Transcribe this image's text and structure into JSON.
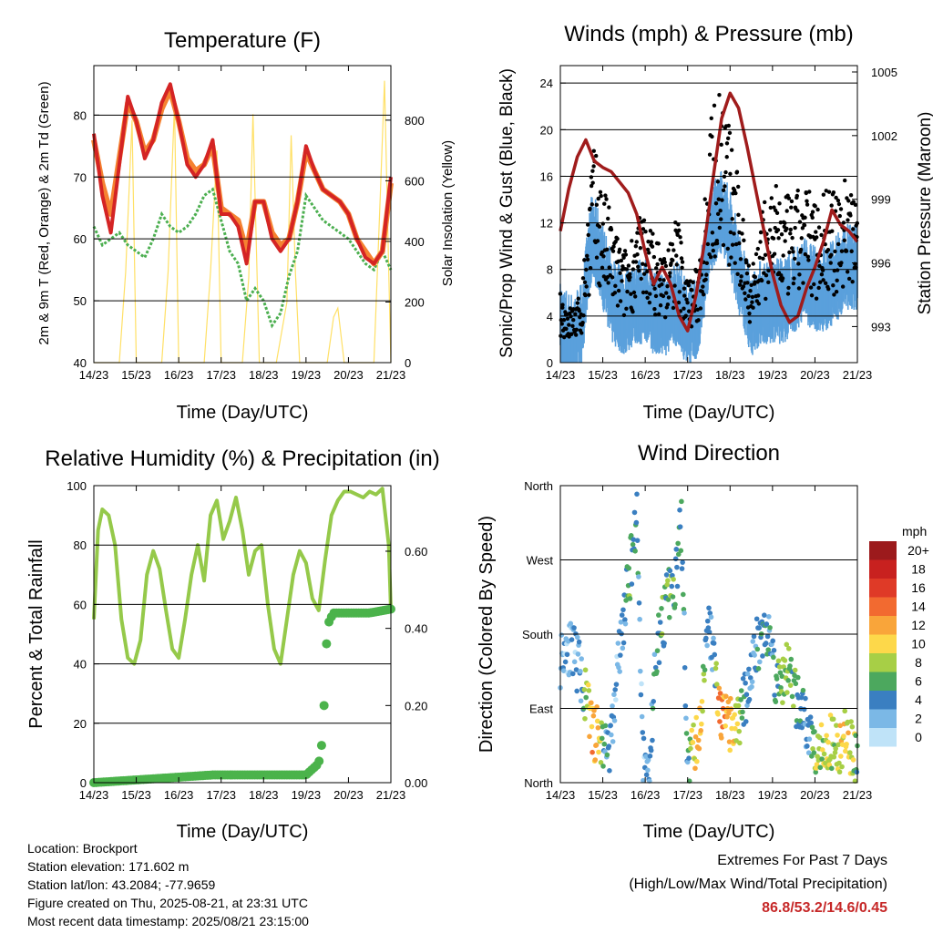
{
  "panels": {
    "temperature": {
      "title": "Temperature (F)",
      "ylabel_left": "2m & 9m T (Red, Orange) & 2m Td (Green)",
      "ylabel_right": "Solar Insolation (Yellow)",
      "xlabel": "Time (Day/UTC)",
      "yticks_left": [
        "40",
        "50",
        "60",
        "70",
        "80"
      ],
      "yticks_right": [
        "0",
        "200",
        "400",
        "600",
        "800"
      ]
    },
    "winds": {
      "title": "Winds (mph) & Pressure (mb)",
      "ylabel_left": "Sonic/Prop Wind & Gust (Blue, Black)",
      "ylabel_right": "Station Pressure (Maroon)",
      "xlabel": "Time (Day/UTC)",
      "yticks_left": [
        "0",
        "4",
        "8",
        "12",
        "16",
        "20",
        "24"
      ],
      "yticks_right": [
        "993",
        "996",
        "999",
        "1002",
        "1005"
      ]
    },
    "humidity": {
      "title": "Relative Humidity (%) & Precipitation (in)",
      "ylabel_left": "Percent & Total Rainfall",
      "xlabel": "Time (Day/UTC)",
      "yticks_left": [
        "0",
        "20",
        "40",
        "60",
        "80",
        "100"
      ],
      "yticks_right": [
        "0.00",
        "0.20",
        "0.40",
        "0.60"
      ]
    },
    "direction": {
      "title": "Wind Direction",
      "ylabel_left": "Direction (Colored By Speed)",
      "xlabel": "Time (Day/UTC)",
      "yticks_left": [
        "North",
        "East",
        "South",
        "West",
        "North"
      ]
    }
  },
  "xticks": [
    "14/23",
    "15/23",
    "16/23",
    "17/23",
    "18/23",
    "19/23",
    "20/23",
    "21/23"
  ],
  "legend": {
    "title": "mph",
    "labels": [
      "20+",
      "18",
      "16",
      "14",
      "12",
      "10",
      "8",
      "6",
      "4",
      "2",
      "0"
    ],
    "colors": [
      "#9c1a1c",
      "#c8211f",
      "#df3a27",
      "#f26a30",
      "#f9a53a",
      "#fdd84a",
      "#a7cf46",
      "#4ca85e",
      "#3a7fc1",
      "#7bb8e6",
      "#bfe3f8"
    ]
  },
  "info": {
    "location": "Location: Brockport",
    "elevation": "Station elevation: 171.602 m",
    "latlon": "Station lat/lon: 43.2084; -77.9659",
    "created": "Figure created on Thu, 2025-08-21, at 23:31 UTC",
    "recent": "Most recent data timestamp: 2025/08/21 23:15:00"
  },
  "extremes": {
    "line1": "Extremes For Past 7 Days",
    "line2": "(High/Low/Max Wind/Total Precipitation)",
    "values": "86.8/53.2/14.6/0.45"
  },
  "colors": {
    "temp2m": "#d42424",
    "temp9m": "#f58231",
    "dewpoint": "#4caf50",
    "solar": "#ffe066",
    "wind": "#5aa0dc",
    "gust": "#000000",
    "pressure": "#a01c1c",
    "rh": "#95c94a",
    "precip": "#4bb34b"
  },
  "chart_data": [
    {
      "type": "line",
      "title": "Temperature (F)",
      "xlabel": "Time (Day/UTC)",
      "x_days": [
        14,
        14.5,
        15,
        15.5,
        16,
        16.5,
        17,
        17.5,
        18,
        18.5,
        19,
        19.5,
        20,
        20.5,
        21
      ],
      "ylim": [
        40,
        88
      ],
      "y2lim": [
        0,
        980
      ],
      "series": [
        {
          "name": "2m T",
          "x": [
            14.0,
            14.2,
            14.4,
            14.6,
            14.8,
            15.0,
            15.2,
            15.4,
            15.6,
            15.8,
            16.0,
            16.2,
            16.4,
            16.6,
            16.8,
            17.0,
            17.2,
            17.4,
            17.6,
            17.8,
            18.0,
            18.2,
            18.4,
            18.6,
            18.8,
            19.0,
            19.2,
            19.4,
            19.6,
            19.8,
            20.0,
            20.2,
            20.4,
            20.6,
            20.8,
            21.0
          ],
          "y": [
            77,
            67,
            61,
            72,
            83,
            79,
            73,
            76,
            82,
            85,
            79,
            72,
            70,
            72,
            76,
            64,
            64,
            62,
            56,
            66,
            66,
            60,
            58,
            60,
            66,
            75,
            71,
            68,
            67,
            66,
            64,
            60,
            57,
            56,
            58,
            70
          ]
        },
        {
          "name": "9m T",
          "x": [
            14.0,
            14.2,
            14.4,
            14.6,
            14.8,
            15.0,
            15.2,
            15.4,
            15.6,
            15.8,
            16.0,
            16.2,
            16.4,
            16.6,
            16.8,
            17.0,
            17.2,
            17.4,
            17.6,
            17.8,
            18.0,
            18.2,
            18.4,
            18.6,
            18.8,
            19.0,
            19.2,
            19.4,
            19.6,
            19.8,
            20.0,
            20.2,
            20.4,
            20.6,
            20.8,
            21.0
          ],
          "y": [
            76,
            69,
            64,
            73,
            82,
            79,
            74,
            76,
            81,
            84,
            79,
            73,
            71,
            72,
            75,
            65,
            64,
            63,
            58,
            66,
            66,
            61,
            59,
            60,
            66,
            74,
            71,
            68,
            67,
            66,
            64,
            60,
            58,
            56,
            58,
            69
          ]
        },
        {
          "name": "2m Td",
          "x": [
            14.0,
            14.2,
            14.4,
            14.6,
            14.8,
            15.0,
            15.2,
            15.4,
            15.6,
            15.8,
            16.0,
            16.2,
            16.4,
            16.6,
            16.8,
            17.0,
            17.2,
            17.4,
            17.6,
            17.8,
            18.0,
            18.2,
            18.4,
            18.6,
            18.8,
            19.0,
            19.2,
            19.4,
            19.6,
            19.8,
            20.0,
            20.2,
            20.4,
            20.6,
            20.8,
            21.0
          ],
          "y": [
            62,
            59,
            60,
            61,
            59,
            58,
            57,
            60,
            64,
            62,
            61,
            62,
            64,
            67,
            68,
            63,
            58,
            56,
            50,
            52,
            50,
            46,
            48,
            54,
            58,
            67,
            65,
            63,
            62,
            61,
            60,
            58,
            56,
            55,
            58,
            55
          ]
        },
        {
          "name": "Solar Insolation",
          "x": [
            14.0,
            14.3,
            14.6,
            14.75,
            14.9,
            15.0,
            15.3,
            15.6,
            15.75,
            15.9,
            16.0,
            16.3,
            16.6,
            16.75,
            16.9,
            17.0,
            17.3,
            17.5,
            17.65,
            17.75,
            17.9,
            18.0,
            18.3,
            18.55,
            18.65,
            18.75,
            18.85,
            19.0,
            19.3,
            19.5,
            19.65,
            19.75,
            19.9,
            20.0,
            20.3,
            20.6,
            20.75,
            20.85,
            20.95,
            21.0
          ],
          "y2": [
            0,
            0,
            0,
            300,
            800,
            0,
            0,
            0,
            300,
            850,
            0,
            0,
            0,
            300,
            700,
            0,
            0,
            0,
            280,
            820,
            0,
            0,
            0,
            200,
            750,
            300,
            0,
            0,
            0,
            0,
            150,
            180,
            0,
            0,
            0,
            0,
            550,
            930,
            300,
            0
          ]
        }
      ]
    },
    {
      "type": "line",
      "title": "Winds (mph) & Pressure (mb)",
      "xlabel": "Time (Day/UTC)",
      "ylim": [
        0,
        25.5
      ],
      "y2lim": [
        991.3,
        1005.3
      ],
      "series": [
        {
          "name": "Sonic/Prop Wind",
          "x": [
            14.0,
            14.25,
            14.5,
            14.75,
            15.0,
            15.25,
            15.5,
            15.75,
            16.0,
            16.25,
            16.5,
            16.75,
            17.0,
            17.25,
            17.5,
            17.75,
            18.0,
            18.25,
            18.5,
            18.75,
            19.0,
            19.25,
            19.5,
            19.75,
            20.0,
            20.25,
            20.5,
            20.75,
            21.0
          ],
          "y": [
            3,
            2,
            3,
            11,
            8,
            5,
            4,
            5,
            5,
            4,
            4,
            5,
            3,
            4,
            10,
            13,
            11,
            7,
            4,
            5,
            5,
            5,
            6,
            7,
            6,
            6,
            7,
            8,
            8
          ]
        },
        {
          "name": "Gust",
          "x": [
            14.0,
            14.25,
            14.5,
            14.75,
            15.0,
            15.25,
            15.5,
            15.75,
            16.0,
            16.25,
            16.5,
            16.75,
            17.0,
            17.25,
            17.5,
            17.75,
            18.0,
            18.25,
            18.5,
            18.75,
            19.0,
            19.25,
            19.5,
            19.75,
            20.0,
            20.25,
            20.5,
            20.75,
            21.0
          ],
          "y": [
            5,
            4,
            5,
            16,
            13,
            10,
            8,
            10,
            11,
            9,
            8,
            11,
            6,
            7,
            17,
            21,
            17,
            12,
            7,
            11,
            13,
            12,
            12,
            13,
            12,
            13,
            12,
            14,
            14
          ]
        },
        {
          "name": "Station Pressure",
          "x": [
            14.0,
            14.2,
            14.4,
            14.6,
            14.8,
            15.0,
            15.2,
            15.4,
            15.6,
            15.8,
            16.0,
            16.2,
            16.4,
            16.6,
            16.8,
            17.0,
            17.2,
            17.4,
            17.6,
            17.8,
            18.0,
            18.2,
            18.4,
            18.6,
            18.8,
            19.0,
            19.2,
            19.4,
            19.6,
            19.8,
            20.0,
            20.2,
            20.4,
            20.6,
            20.8,
            21.0
          ],
          "y2": [
            997.5,
            999.5,
            1001.0,
            1001.8,
            1000.8,
            1000.5,
            1000.3,
            999.8,
            999.3,
            998.3,
            996.5,
            995.0,
            995.8,
            995.0,
            993.5,
            992.8,
            994.5,
            997.0,
            1000.0,
            1002.8,
            1004.0,
            1003.3,
            1001.5,
            999.5,
            997.5,
            995.5,
            994.0,
            993.2,
            993.5,
            994.8,
            995.8,
            997.0,
            998.5,
            997.8,
            997.5,
            997.0
          ]
        }
      ]
    },
    {
      "type": "line",
      "title": "Relative Humidity (%) & Precipitation (in)",
      "xlabel": "Time (Day/UTC)",
      "ylim": [
        0,
        100
      ],
      "y2lim": [
        0,
        0.77
      ],
      "series": [
        {
          "name": "Relative Humidity",
          "x": [
            14.0,
            14.1,
            14.2,
            14.35,
            14.5,
            14.65,
            14.8,
            14.95,
            15.1,
            15.25,
            15.4,
            15.55,
            15.7,
            15.85,
            16.0,
            16.15,
            16.3,
            16.45,
            16.6,
            16.75,
            16.9,
            17.05,
            17.2,
            17.35,
            17.5,
            17.65,
            17.8,
            17.95,
            18.1,
            18.25,
            18.4,
            18.55,
            18.7,
            18.85,
            19.0,
            19.15,
            19.3,
            19.45,
            19.6,
            19.75,
            19.9,
            20.05,
            20.2,
            20.35,
            20.5,
            20.65,
            20.8,
            20.95,
            21.0
          ],
          "y": [
            55,
            85,
            92,
            90,
            80,
            55,
            42,
            40,
            48,
            70,
            78,
            72,
            58,
            45,
            42,
            55,
            70,
            80,
            68,
            90,
            95,
            82,
            88,
            96,
            85,
            70,
            78,
            80,
            60,
            45,
            40,
            55,
            70,
            78,
            74,
            62,
            58,
            75,
            90,
            95,
            98,
            98,
            97,
            96,
            98,
            97,
            99,
            80,
            58
          ]
        },
        {
          "name": "Total Precipitation",
          "x": [
            14.0,
            16.8,
            19.0,
            19.3,
            19.4,
            19.45,
            19.5,
            19.55,
            19.6,
            19.65,
            19.8,
            20.5,
            21.0
          ],
          "y2": [
            0,
            0.02,
            0.02,
            0.05,
            0.12,
            0.28,
            0.4,
            0.42,
            0.43,
            0.44,
            0.44,
            0.44,
            0.45
          ]
        }
      ]
    },
    {
      "type": "scatter",
      "title": "Wind Direction",
      "xlabel": "Time (Day/UTC)",
      "y_categories": [
        "North",
        "East",
        "South",
        "West",
        "North"
      ],
      "ylim": [
        0,
        360
      ],
      "color_scale_mph": [
        0,
        2,
        4,
        6,
        8,
        10,
        12,
        14,
        16,
        18,
        20
      ],
      "series": [
        {
          "name": "Direction",
          "x": [
            14.0,
            14.15,
            14.3,
            14.45,
            14.6,
            14.75,
            14.9,
            15.05,
            15.2,
            15.35,
            15.5,
            15.65,
            15.8,
            15.95,
            16.1,
            16.25,
            16.4,
            16.55,
            16.7,
            16.85,
            17.0,
            17.15,
            17.3,
            17.45,
            17.6,
            17.75,
            17.9,
            18.05,
            18.2,
            18.35,
            18.5,
            18.65,
            18.8,
            18.95,
            19.1,
            19.25,
            19.4,
            19.55,
            19.7,
            19.85,
            20.0,
            20.15,
            20.3,
            20.45,
            20.6,
            20.75,
            20.9,
            21.0
          ],
          "y": [
            150,
            170,
            155,
            140,
            100,
            65,
            55,
            45,
            50,
            140,
            200,
            260,
            330,
            30,
            10,
            160,
            190,
            230,
            230,
            320,
            10,
            45,
            60,
            200,
            160,
            80,
            75,
            65,
            75,
            100,
            140,
            170,
            190,
            170,
            120,
            130,
            140,
            100,
            80,
            60,
            45,
            50,
            45,
            50,
            45,
            55,
            40,
            20
          ],
          "speed": [
            3,
            2,
            2,
            3,
            7,
            12,
            11,
            4,
            3,
            2,
            4,
            6,
            4,
            2,
            3,
            5,
            6,
            6,
            5,
            5,
            4,
            10,
            12,
            3,
            2,
            14,
            12,
            10,
            8,
            4,
            3,
            4,
            5,
            4,
            6,
            7,
            7,
            5,
            4,
            3,
            8,
            8,
            9,
            8,
            10,
            10,
            9,
            4
          ]
        }
      ]
    }
  ]
}
